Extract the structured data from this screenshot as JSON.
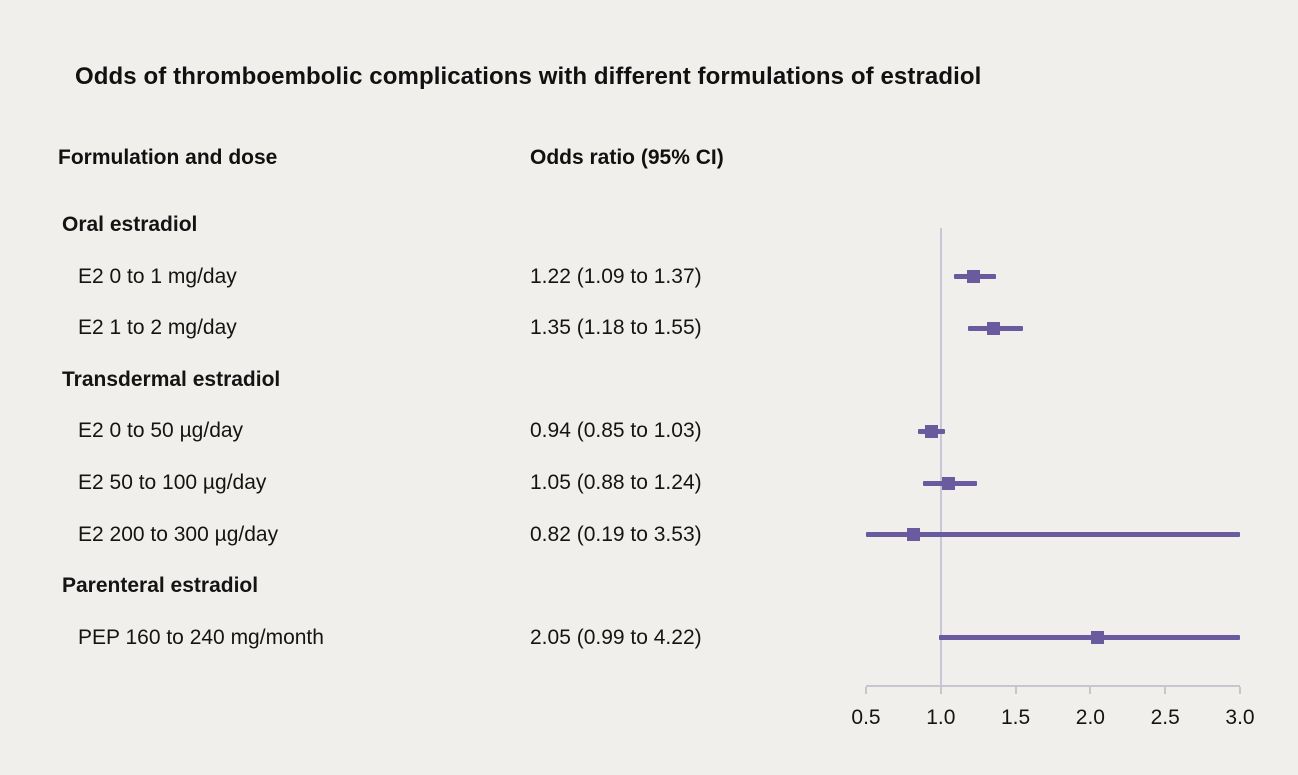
{
  "title": "Odds of thromboembolic complications with different formulations of estradiol",
  "columns": {
    "formulation": "Formulation and dose",
    "odds_ratio": "Odds ratio (95% CI)"
  },
  "colors": {
    "accent": "#6a5a9e",
    "reference_line": "#c8c6d8",
    "axis": "#c6c6cf",
    "background": "#f0efec",
    "text": "#141414"
  },
  "chart_data": {
    "type": "forest",
    "title": "Odds of thromboembolic complications with different formulations of estradiol",
    "xlim": [
      0.5,
      3.0
    ],
    "x_ticks": [
      0.5,
      1.0,
      1.5,
      2.0,
      2.5,
      3.0
    ],
    "x_tick_labels": [
      "0.5",
      "1.0",
      "1.5",
      "2.0",
      "2.5",
      "3.0"
    ],
    "reference_line": 1.0,
    "grid": false,
    "rows": [
      {
        "kind": "group",
        "label": "Oral estradiol"
      },
      {
        "kind": "item",
        "label": "E2 0 to 1 mg/day",
        "or_text": "1.22 (1.09 to 1.37)",
        "est": 1.22,
        "lo": 1.09,
        "hi": 1.37
      },
      {
        "kind": "item",
        "label": "E2 1 to 2 mg/day",
        "or_text": "1.35 (1.18 to 1.55)",
        "est": 1.35,
        "lo": 1.18,
        "hi": 1.55
      },
      {
        "kind": "group",
        "label": "Transdermal estradiol"
      },
      {
        "kind": "item",
        "label": "E2 0 to 50 µg/day",
        "or_text": "0.94 (0.85 to 1.03)",
        "est": 0.94,
        "lo": 0.85,
        "hi": 1.03
      },
      {
        "kind": "item",
        "label": "E2 50 to 100 µg/day",
        "or_text": "1.05 (0.88 to 1.24)",
        "est": 1.05,
        "lo": 0.88,
        "hi": 1.24
      },
      {
        "kind": "item",
        "label": "E2 200 to 300 µg/day",
        "or_text": "0.82 (0.19 to 3.53)",
        "est": 0.82,
        "lo": 0.19,
        "hi": 3.53
      },
      {
        "kind": "group",
        "label": "Parenteral estradiol"
      },
      {
        "kind": "item",
        "label": "PEP 160 to 240 mg/month",
        "or_text": "2.05 (0.99 to 4.22)",
        "est": 2.05,
        "lo": 0.99,
        "hi": 4.22
      }
    ]
  }
}
